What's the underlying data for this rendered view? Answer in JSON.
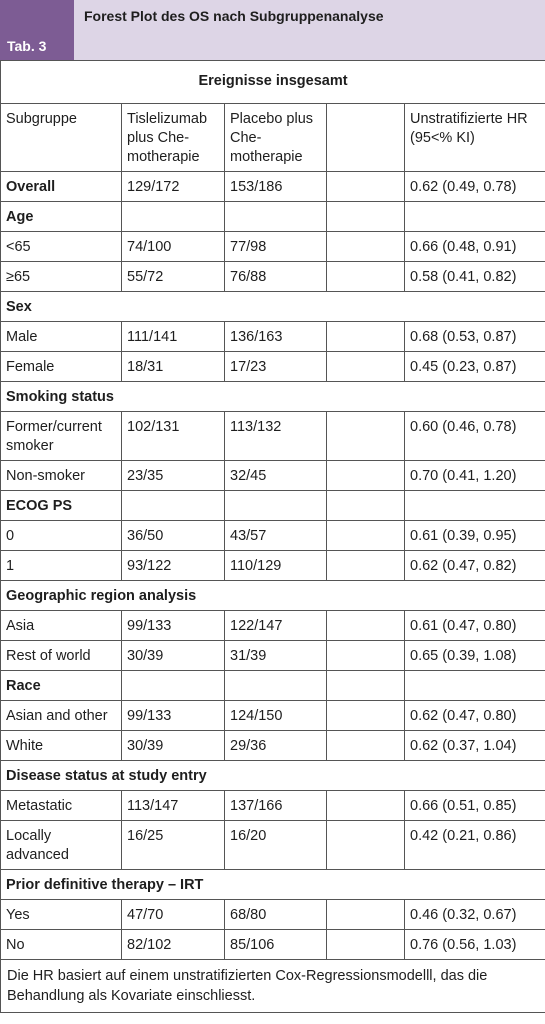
{
  "header": {
    "tab_label": "Tab. 3",
    "title": "Forest Plot des OS nach Subgruppenanalyse"
  },
  "table": {
    "super_header": "Ereignisse insgesamt",
    "columns": {
      "subgroup": "Subgruppe",
      "tislelizumab": "Tislelizumab plus Che-motherapie",
      "placebo": "Placebo plus Che-motherapie",
      "blank": "",
      "hr": "Unstratifizierte HR (95<% KI)"
    },
    "overall": {
      "label": "Overall",
      "tisl": "129/172",
      "plac": "153/186",
      "hr": "0.62 (0.49, 0.78)"
    },
    "age": {
      "label": "Age",
      "rows": [
        {
          "label": "<65",
          "tisl": "74/100",
          "plac": "77/98",
          "hr": "0.66 (0.48, 0.91)"
        },
        {
          "label": "≥65",
          "tisl": "55/72",
          "plac": "76/88",
          "hr": "0.58 (0.41, 0.82)"
        }
      ]
    },
    "sex": {
      "label": "Sex",
      "rows": [
        {
          "label": "Male",
          "tisl": "111/141",
          "plac": "136/163",
          "hr": "0.68 (0.53, 0.87)"
        },
        {
          "label": "Female",
          "tisl": "18/31",
          "plac": "17/23",
          "hr": "0.45 (0.23, 0.87)"
        }
      ]
    },
    "smoking": {
      "label": "Smoking status",
      "rows": [
        {
          "label": "Former/current smoker",
          "tisl": "102/131",
          "plac": "113/132",
          "hr": "0.60 (0.46, 0.78)"
        },
        {
          "label": "Non-smoker",
          "tisl": "23/35",
          "plac": "32/45",
          "hr": "0.70 (0.41, 1.20)"
        }
      ]
    },
    "ecog": {
      "label": "ECOG PS",
      "rows": [
        {
          "label": "0",
          "tisl": "36/50",
          "plac": "43/57",
          "hr": "0.61 (0.39, 0.95)"
        },
        {
          "label": "1",
          "tisl": "93/122",
          "plac": "110/129",
          "hr": "0.62 (0.47, 0.82)"
        }
      ]
    },
    "region": {
      "label": "Geographic region analysis",
      "rows": [
        {
          "label": "Asia",
          "tisl": "99/133",
          "plac": "122/147",
          "hr": "0.61 (0.47, 0.80)"
        },
        {
          "label": "Rest of world",
          "tisl": "30/39",
          "plac": "31/39",
          "hr": "0.65 (0.39, 1.08)"
        }
      ]
    },
    "race": {
      "label": "Race",
      "rows": [
        {
          "label": "Asian and other",
          "tisl": "99/133",
          "plac": "124/150",
          "hr": "0.62 (0.47, 0.80)"
        },
        {
          "label": "White",
          "tisl": "30/39",
          "plac": "29/36",
          "hr": "0.62 (0.37, 1.04)"
        }
      ]
    },
    "disease": {
      "label": "Disease status at study entry",
      "rows": [
        {
          "label": "Metastatic",
          "tisl": "113/147",
          "plac": "137/166",
          "hr": "0.66 (0.51, 0.85)"
        },
        {
          "label": "Locally advanced",
          "tisl": "16/25",
          "plac": "16/20",
          "hr": "0.42 (0.21, 0.86)"
        }
      ]
    },
    "prior": {
      "label": "Prior definitive therapy – IRT",
      "rows": [
        {
          "label": "Yes",
          "tisl": "47/70",
          "plac": "68/80",
          "hr": "0.46 (0.32, 0.67)"
        },
        {
          "label": "No",
          "tisl": "82/102",
          "plac": "85/106",
          "hr": "0.76 (0.56, 1.03)"
        }
      ]
    },
    "footnote": "Die HR basiert auf einem unstratifizierten Cox-Regressionsmodelll, das die Behandlung als Kovariate einschliesst."
  }
}
